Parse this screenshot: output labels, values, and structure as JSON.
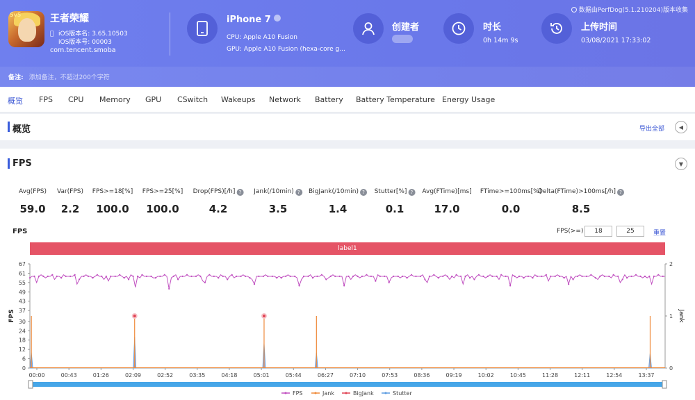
{
  "header": {
    "app_name": "王者荣耀",
    "ios_version_name": "iOS版本名: 3.65.10503",
    "ios_version_code": "iOS版本号: 00003",
    "package": "com.tencent.smoba",
    "device": "iPhone 7",
    "cpu": "CPU: Apple A10 Fusion",
    "gpu": "GPU: Apple A10 Fusion (hexa-core g...",
    "creator_label": "创建者",
    "duration_label": "时长",
    "duration_value": "0h 14m 9s",
    "upload_label": "上传时间",
    "upload_value": "03/08/2021 17:33:02",
    "source": "数据由PerfDog(5.1.210204)版本收集",
    "note_label": "备注:",
    "note_placeholder": "添加备注，不超过200个字符",
    "icon_badge": "5v5"
  },
  "tabs": [
    "概览",
    "FPS",
    "CPU",
    "Memory",
    "GPU",
    "CSwitch",
    "Wakeups",
    "Network",
    "Battery",
    "Battery Temperature",
    "Energy Usage"
  ],
  "overview": {
    "title": "概览",
    "export": "导出全部"
  },
  "fps_card": {
    "title": "FPS",
    "chart_title": "FPS",
    "threshold_label": "FPS(>=)",
    "threshold1": "18",
    "threshold2": "25",
    "reset": "重置",
    "label_bar": "label1"
  },
  "stats": [
    {
      "label": "Avg(FPS)",
      "value": "59.0",
      "help": false
    },
    {
      "label": "Var(FPS)",
      "value": "2.2",
      "help": false
    },
    {
      "label": "FPS>=18[%]",
      "value": "100.0",
      "help": false
    },
    {
      "label": "FPS>=25[%]",
      "value": "100.0",
      "help": false
    },
    {
      "label": "Drop(FPS)[/h]",
      "value": "4.2",
      "help": true
    },
    {
      "label": "Jank(/10min)",
      "value": "3.5",
      "help": true
    },
    {
      "label": "BigJank(/10min)",
      "value": "1.4",
      "help": true
    },
    {
      "label": "Stutter[%]",
      "value": "0.1",
      "help": true
    },
    {
      "label": "Avg(FTime)[ms]",
      "value": "17.0",
      "help": false
    },
    {
      "label": "FTime>=100ms[%]",
      "value": "0.0",
      "help": false
    },
    {
      "label": "Delta(FTime)>100ms[/h]",
      "value": "8.5",
      "help": true
    }
  ],
  "chart_data": {
    "type": "line",
    "xlabel": "",
    "ylabel": "FPS",
    "y2label": "Jank",
    "ylim": [
      0,
      67
    ],
    "y2lim": [
      0,
      2
    ],
    "yticks": [
      0,
      6,
      12,
      18,
      24,
      30,
      37,
      43,
      49,
      55,
      61,
      67
    ],
    "y2ticks": [
      0,
      1,
      2
    ],
    "x_ticks": [
      "00:00",
      "00:43",
      "01:26",
      "02:09",
      "02:52",
      "03:35",
      "04:18",
      "05:01",
      "05:44",
      "06:27",
      "07:10",
      "07:53",
      "08:36",
      "09:19",
      "10:02",
      "10:45",
      "11:28",
      "12:11",
      "12:54",
      "13:37"
    ],
    "duration_seconds": 849,
    "series": [
      {
        "name": "FPS",
        "color": "#c04fc0",
        "baseline": 59,
        "drops": [
          [
            10,
            55
          ],
          [
            62,
            54
          ],
          [
            105,
            56
          ],
          [
            140,
            53
          ],
          [
            142,
            52
          ],
          [
            186,
            51
          ],
          [
            235,
            55
          ],
          [
            300,
            54
          ],
          [
            360,
            53
          ],
          [
            420,
            53
          ],
          [
            480,
            55
          ],
          [
            530,
            55
          ],
          [
            580,
            54
          ],
          [
            642,
            53
          ],
          [
            720,
            54
          ],
          [
            790,
            55
          ],
          [
            830,
            54
          ]
        ]
      },
      {
        "name": "Jank",
        "color": "#ef8a3a",
        "events": [
          [
            2,
            1
          ],
          [
            140,
            1
          ],
          [
            313,
            1
          ],
          [
            383,
            1
          ],
          [
            829,
            1
          ]
        ]
      },
      {
        "name": "BigJank",
        "color": "#e04455",
        "events": [
          [
            140,
            1
          ],
          [
            313,
            1
          ]
        ]
      },
      {
        "name": "Stutter",
        "color": "#5a9be0",
        "events": [
          [
            2,
            0.3
          ],
          [
            140,
            0.6
          ],
          [
            313,
            0.5
          ],
          [
            383,
            0.3
          ],
          [
            829,
            0.3
          ]
        ]
      }
    ],
    "legend_position": "bottom",
    "grid": true
  }
}
